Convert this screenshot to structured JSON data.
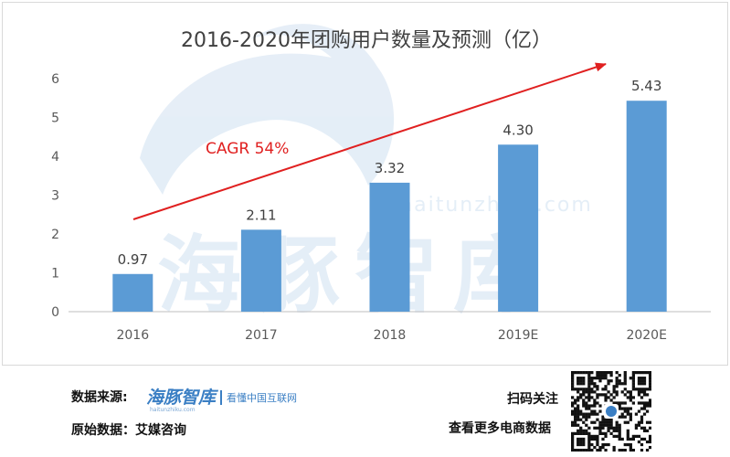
{
  "chart_data": {
    "type": "bar",
    "title": "2016-2020年团购用户数量及预测（亿）",
    "categories": [
      "2016",
      "2017",
      "2018",
      "2019E",
      "2020E"
    ],
    "values": [
      0.97,
      2.11,
      3.32,
      4.3,
      5.43
    ],
    "value_labels": [
      "0.97",
      "2.11",
      "3.32",
      "4.30",
      "5.43"
    ],
    "y_ticks": [
      "0",
      "1",
      "2",
      "3",
      "4",
      "5",
      "6"
    ],
    "ylim": [
      0,
      6
    ],
    "xlabel": "",
    "ylabel": "",
    "grid": false,
    "bar_color": "#5b9bd5",
    "annotation": "CAGR 54%",
    "annotation_color": "#e02020"
  },
  "watermark": {
    "text": "海豚智库",
    "url": "haitunzhiku.com"
  },
  "footer": {
    "source_label": "数据来源:",
    "brand_name": "海豚智库",
    "brand_slogan": "看懂中国互联网",
    "brand_url": "haitunzhiku.com",
    "origin_label": "原始数据：艾媒咨询",
    "scan_label": "扫码关注",
    "more_label": "查看更多电商数据"
  }
}
